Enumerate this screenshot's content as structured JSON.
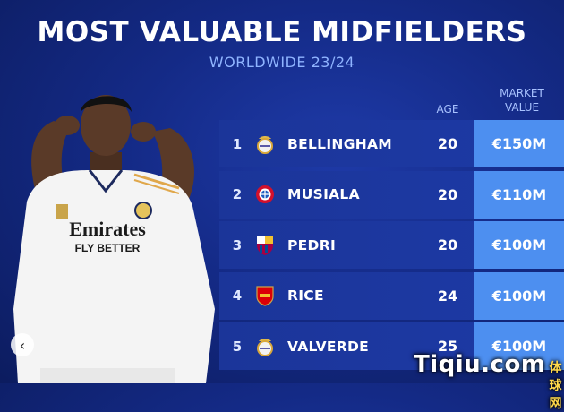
{
  "header": {
    "title": "MOST VALUABLE MIDFIELDERS",
    "subtitle": "WORLDWIDE 23/24"
  },
  "columns": {
    "age": "AGE",
    "market_value_line1": "MARKET",
    "market_value_line2": "VALUE"
  },
  "rows": [
    {
      "rank": "1",
      "club_icon": "real-madrid-crest-icon",
      "name": "BELLINGHAM",
      "age": "20",
      "value": "€150M"
    },
    {
      "rank": "2",
      "club_icon": "bayern-munich-crest-icon",
      "name": "MUSIALA",
      "age": "20",
      "value": "€110M"
    },
    {
      "rank": "3",
      "club_icon": "barcelona-crest-icon",
      "name": "PEDRI",
      "age": "20",
      "value": "€100M"
    },
    {
      "rank": "4",
      "club_icon": "arsenal-crest-icon",
      "name": "RICE",
      "age": "24",
      "value": "€100M"
    },
    {
      "rank": "5",
      "club_icon": "real-madrid-crest-icon",
      "name": "VALVERDE",
      "age": "25",
      "value": "€100M"
    }
  ],
  "player_shirt": {
    "sponsor_line1": "Emirates",
    "sponsor_line2": "FLY BETTER"
  },
  "watermark": {
    "text": "Tiqiu.com",
    "cn": "体球网"
  },
  "colors": {
    "background": "#142a86",
    "row_bg": "#1b3599",
    "value_bg": "#4d8ff0",
    "subtitle": "#8fb4ff"
  }
}
